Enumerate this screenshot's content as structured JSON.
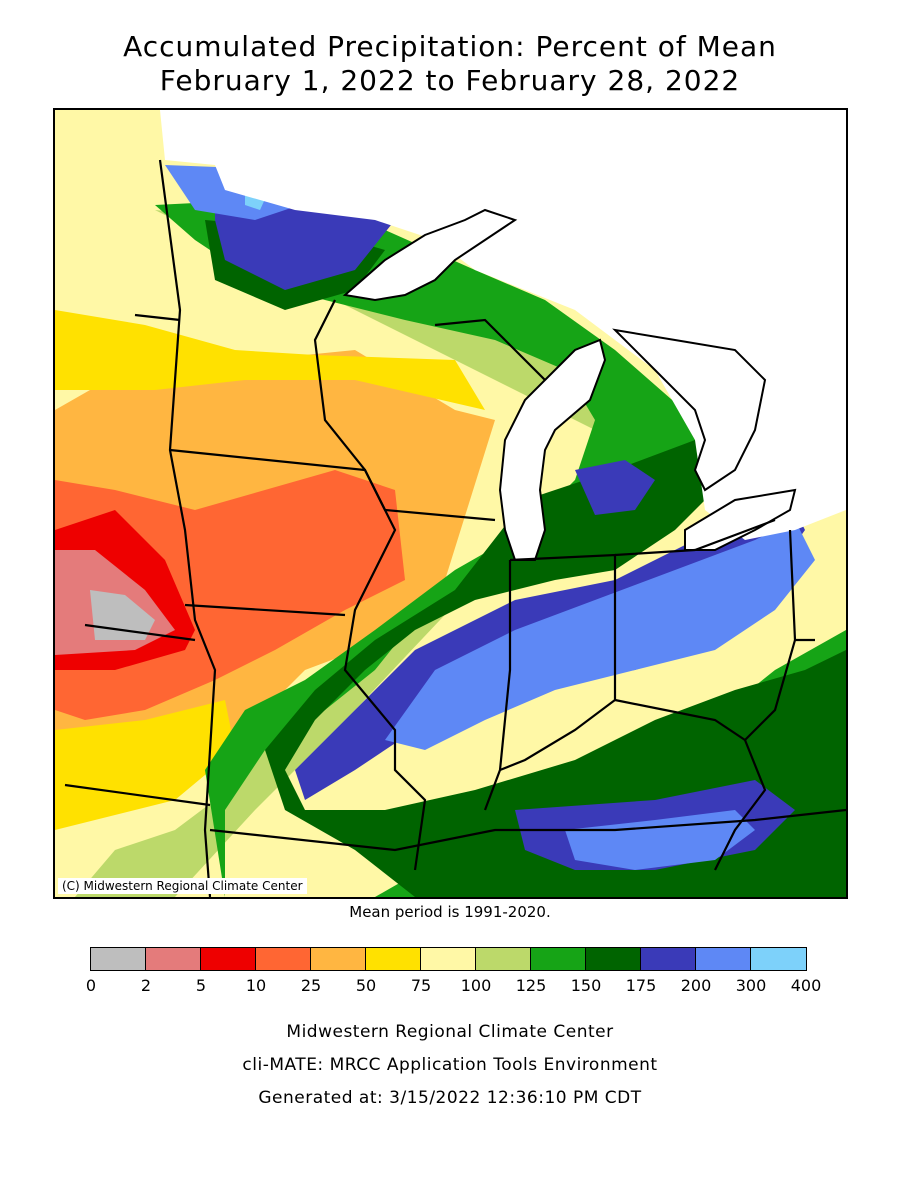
{
  "title_line1": "Accumulated Precipitation: Percent of Mean",
  "title_line2": "February 1, 2022 to February 28, 2022",
  "copyright": "(C) Midwestern Regional Climate Center",
  "mean_period": "Mean period is 1991-2020.",
  "legend": {
    "ticks": [
      "0",
      "2",
      "5",
      "10",
      "25",
      "50",
      "75",
      "100",
      "125",
      "150",
      "175",
      "200",
      "300",
      "400"
    ],
    "colors": [
      "#bebebe",
      "#e47b7b",
      "#ee0000",
      "#ff6633",
      "#ffb641",
      "#ffe100",
      "#fff8a6",
      "#bcd96a",
      "#16a416",
      "#006400",
      "#3a3ab8",
      "#5e88f5",
      "#7dd1fa"
    ]
  },
  "footer": {
    "line1": "Midwestern Regional Climate Center",
    "line2": "cli-MATE: MRCC Application Tools Environment",
    "line3": "Generated at: 3/15/2022 12:36:10 PM CDT"
  }
}
